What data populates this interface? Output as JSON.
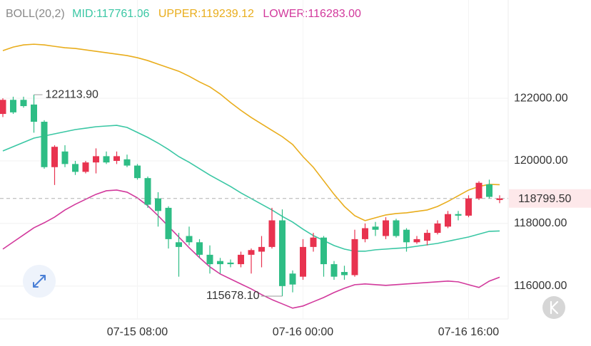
{
  "chart_data": {
    "type": "candlestick",
    "indicator": "BOLL(20,2)",
    "categories": [
      null,
      null,
      null,
      null,
      null,
      null,
      null,
      null,
      null,
      null,
      null,
      null,
      null,
      "07-15 08:00",
      null,
      null,
      null,
      null,
      null,
      null,
      null,
      null,
      null,
      null,
      null,
      null,
      null,
      null,
      null,
      "07-16 00:00",
      null,
      null,
      null,
      null,
      null,
      null,
      null,
      null,
      null,
      null,
      null,
      null,
      null,
      null,
      null,
      "07-16 16:00",
      null,
      null,
      null
    ],
    "open": [
      121500,
      121950,
      121950,
      121800,
      121250,
      119800,
      120300,
      119900,
      119650,
      119950,
      120150,
      120000,
      120050,
      119850,
      119450,
      118800,
      118500,
      117400,
      117600,
      117400,
      117000,
      116800,
      116750,
      116700,
      117000,
      117100,
      117250,
      118100,
      116400,
      116300,
      117250,
      117550,
      116700,
      116450,
      116350,
      117500,
      117900,
      117600,
      118100,
      117800,
      117400,
      117450,
      117700,
      117900,
      118300,
      118250,
      118800,
      119250,
      118750
    ],
    "high": [
      122000,
      122050,
      122050,
      122113.9,
      121300,
      120500,
      120500,
      120000,
      120000,
      120400,
      120300,
      120300,
      120200,
      119900,
      119500,
      119000,
      118550,
      117700,
      117900,
      117500,
      117300,
      116900,
      116850,
      117100,
      117200,
      117600,
      118500,
      118450,
      116500,
      117500,
      117700,
      117600,
      116800,
      116650,
      117800,
      118000,
      118050,
      118200,
      118150,
      117850,
      117600,
      117800,
      118100,
      118400,
      118400,
      118900,
      119350,
      119400,
      118900
    ],
    "low": [
      121400,
      121500,
      121700,
      120900,
      119750,
      119230,
      119800,
      119550,
      119600,
      119600,
      119900,
      119900,
      119800,
      119400,
      118500,
      117900,
      117200,
      116300,
      117300,
      116900,
      116400,
      116400,
      116600,
      116600,
      116400,
      116600,
      117200,
      115678.1,
      115800,
      116200,
      117100,
      116300,
      116200,
      116200,
      116300,
      117400,
      117600,
      117500,
      117550,
      117100,
      117350,
      117300,
      117650,
      117850,
      118100,
      118200,
      118750,
      118800,
      118650
    ],
    "close": [
      121950,
      121550,
      121750,
      121250,
      119800,
      120450,
      119900,
      119650,
      119950,
      120150,
      119950,
      120150,
      119850,
      119450,
      118600,
      118400,
      117500,
      117250,
      117400,
      117000,
      116700,
      116700,
      116700,
      117000,
      117150,
      117250,
      118100,
      116000,
      116050,
      117250,
      117550,
      116700,
      116300,
      116350,
      117500,
      117850,
      117800,
      118100,
      117600,
      117400,
      117500,
      117700,
      118000,
      118300,
      118250,
      118800,
      119300,
      118850,
      118799.5
    ],
    "up_color": "#e8334f",
    "down_color": "#2ebd85",
    "series": [
      {
        "name": "MID:117761.06",
        "color": "#3ac7a4",
        "values": [
          120318,
          120455,
          120591,
          120727,
          120795,
          120864,
          120932,
          121000,
          121045,
          121091,
          121114,
          121136,
          121068,
          120909,
          120750,
          120568,
          120364,
          120136,
          119955,
          119750,
          119545,
          119364,
          119182,
          118977,
          118795,
          118614,
          118432,
          118227,
          118045,
          117818,
          117614,
          117455,
          117295,
          117182,
          117114,
          117114,
          117159,
          117182,
          117205,
          117227,
          117273,
          117318,
          117364,
          117432,
          117500,
          117568,
          117659,
          117750,
          117761.06
        ]
      },
      {
        "name": "UPPER:119239.12",
        "color": "#e9ad1c",
        "values": [
          123523,
          123636,
          123705,
          123727,
          123705,
          123659,
          123614,
          123591,
          123546,
          123500,
          123455,
          123409,
          123364,
          123296,
          123205,
          123091,
          122977,
          122864,
          122705,
          122523,
          122364,
          122136,
          121864,
          121614,
          121386,
          121182,
          120977,
          120773,
          120523,
          120136,
          119795,
          119364,
          118932,
          118545,
          118250,
          118091,
          118182,
          118273,
          118318,
          118341,
          118386,
          118432,
          118545,
          118705,
          118886,
          119068,
          119182,
          119250,
          119239.12
        ]
      },
      {
        "name": "LOWER:116283.00",
        "color": "#d2399c",
        "values": [
          117182,
          117409,
          117636,
          117863,
          118023,
          118205,
          118432,
          118614,
          118773,
          118932,
          119045,
          119068,
          119000,
          118818,
          118568,
          118250,
          117909,
          117568,
          117227,
          116909,
          116614,
          116386,
          116227,
          116068,
          115909,
          115727,
          115568,
          115432,
          115295,
          115364,
          115500,
          115636,
          115795,
          115932,
          116045,
          116068,
          116045,
          116023,
          116045,
          116068,
          116091,
          116114,
          116136,
          116159,
          116136,
          116045,
          115955,
          116159,
          116283.0
        ]
      }
    ],
    "ylim": [
      114950,
      125140
    ],
    "yticks": [
      {
        "value": 116000,
        "label": "116000.00"
      },
      {
        "value": 118000,
        "label": "118000.00"
      },
      {
        "value": 120000,
        "label": "120000.00"
      },
      {
        "value": 122000,
        "label": "122000.00"
      }
    ],
    "grid": true,
    "annotations": [
      {
        "value": 122113.9,
        "label": "122113.90"
      },
      {
        "value": 115678.1,
        "label": "115678.10"
      }
    ],
    "last_price": {
      "value": 118799.5,
      "label": "118799.50"
    }
  }
}
